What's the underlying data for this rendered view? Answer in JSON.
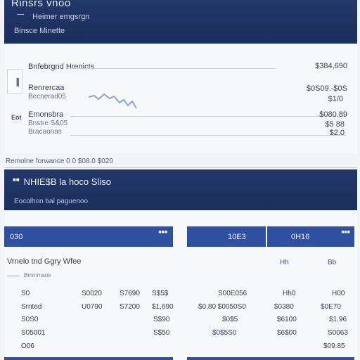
{
  "header": {
    "title": "Rinsrs vnoo",
    "subtitle": "Heimer emgsrgn",
    "subtitle2": "Binsce Minette",
    "mark": "•"
  },
  "summary": {
    "rows": [
      {
        "label": "Bnfebrgnd Hrenicts",
        "sub": "",
        "amount": "$384,690"
      },
      {
        "label": "Renrercaa",
        "sub": "Becnerad05",
        "amount": "$0S09.-$0S"
      },
      {
        "label": "",
        "sub": "",
        "amount": "$1/0"
      },
      {
        "label": "Emonsbra",
        "sub": "Bnstre S&05",
        "amount": "$080.89"
      },
      {
        "label": "",
        "sub": "",
        "amount": "$5 88"
      },
      {
        "label": "",
        "sub": "Bracaonas",
        "amount": "$2.0"
      }
    ],
    "side_label": "Eot",
    "footer": "Remolne forwance 0 0 $08.0 $020"
  },
  "section": {
    "title": "NHIE$B la hoco Sliso",
    "mark": "■■",
    "subtitle": "Eocolhon bal paguenoo"
  },
  "tabs": [
    {
      "label": "030",
      "tag": "■■■"
    },
    {
      "label": "10E3",
      "tag": ""
    },
    {
      "label": "0H16",
      "tag": "■■■"
    }
  ],
  "table": {
    "title": "Vrnelo tnd Ggry Wfee",
    "subtitle": "Bmmmaoe",
    "btn1": "Hh",
    "btn2": "Bb",
    "rows": [
      {
        "c1": "S0",
        "c2": "S0020",
        "c3": "S7690",
        "c4": "S$5$",
        "c5": "S00E056",
        "c6": "Hh0",
        "c7": "H00"
      },
      {
        "c1": "Srnted",
        "c2": "U0790",
        "c3": "S7200",
        "c4": "$1,690",
        "c5": "$0.80 $0050S0",
        "c6": "$0380",
        "c7": "$0E70"
      },
      {
        "c1": "S0S0",
        "c2": "",
        "c3": "",
        "c4": "S$90",
        "c5": "$0$5",
        "c6": "$6100",
        "c7": "$1.96"
      },
      {
        "c1": "S05001",
        "c2": "",
        "c3": "",
        "c4": "S$50",
        "c5": "$0$5S0",
        "c6": "$6$00",
        "c7": "S0063"
      },
      {
        "c1": "O06",
        "c2": "",
        "c3": "",
        "c4": "",
        "c5": "",
        "c6": "",
        "c7": "$09.85"
      }
    ]
  }
}
